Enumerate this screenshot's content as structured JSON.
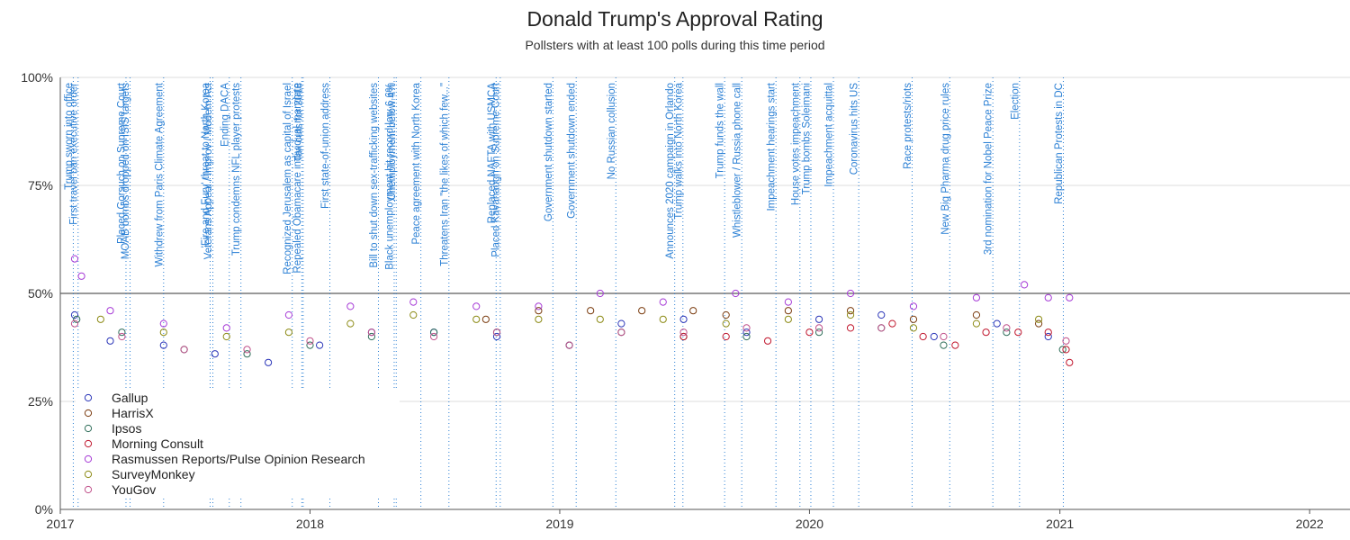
{
  "chart_data": {
    "type": "scatter",
    "title": "Donald Trump's Approval Rating",
    "subtitle": "Pollsters with at least 100 polls during this time period",
    "xlim": [
      "2017-01-01",
      "2022-03-01"
    ],
    "ylim": [
      0,
      100
    ],
    "x_ticks": [
      "2017",
      "2018",
      "2019",
      "2020",
      "2021",
      "2022"
    ],
    "y_ticks": [
      "0%",
      "25%",
      "50%",
      "75%",
      "100%"
    ],
    "reference_line": 50,
    "grid": "horizontal",
    "legend_position": "bottom-left",
    "colors": {
      "Gallup": "#2a35b8",
      "HarrisX": "#7a3b0e",
      "Ipsos": "#2f6e5a",
      "Morning Consult": "#c0152c",
      "Rasmussen Reports/Pulse Opinion Research": "#a63ad6",
      "SurveyMonkey": "#8c8a14",
      "YouGov": "#c0508a",
      "event_line": "#2a7fd4"
    },
    "events": [
      {
        "date": "2017-01-20",
        "label": "Trump sworn into office"
      },
      {
        "date": "2017-01-27",
        "label": "First travel ban executive order"
      },
      {
        "date": "2017-04-07",
        "label": "Placed Gorsuch on Supreme Court"
      },
      {
        "date": "2017-04-13",
        "label": "MOAB bombs dropped on ISIS targets"
      },
      {
        "date": "2017-06-01",
        "label": "Withdrew from Paris Climate Agreement"
      },
      {
        "date": "2017-08-08",
        "label": "'Fire and Fury' threat to North Korea"
      },
      {
        "date": "2017-08-12",
        "label": "Veterans Appeal / Improv / Modern Act"
      },
      {
        "date": "2017-09-05",
        "label": "Ending DACA"
      },
      {
        "date": "2017-09-22",
        "label": "Trump condemns NFL player protests"
      },
      {
        "date": "2017-12-06",
        "label": "Recognized Jerusalem as capital of Israel"
      },
      {
        "date": "2017-12-20",
        "label": "Repealed Obamacare individual mandate"
      },
      {
        "date": "2017-12-22",
        "label": "Tax cuts for 2018"
      },
      {
        "date": "2018-01-30",
        "label": "First state-of-union address"
      },
      {
        "date": "2018-04-11",
        "label": "Bill to shut down sex-trafficking websites"
      },
      {
        "date": "2018-05-04",
        "label": "Black unemployment hit record low 6.6%"
      },
      {
        "date": "2018-05-07",
        "label": "Unemployment below 4%"
      },
      {
        "date": "2018-06-12",
        "label": "Peace agreement with North Korea"
      },
      {
        "date": "2018-07-23",
        "label": "Threatens Iran \"the likes of which few...\""
      },
      {
        "date": "2018-09-30",
        "label": "Replaced NAFTA with USMCA"
      },
      {
        "date": "2018-10-06",
        "label": "Placed Kavanaugh on Supreme Court"
      },
      {
        "date": "2018-12-22",
        "label": "Government shutdown started"
      },
      {
        "date": "2019-01-25",
        "label": "Government shutdown ended"
      },
      {
        "date": "2019-03-24",
        "label": "No Russian collusion"
      },
      {
        "date": "2019-06-18",
        "label": "Announces 2020 campaign in Orlando"
      },
      {
        "date": "2019-06-30",
        "label": "Trump walks into North Korea"
      },
      {
        "date": "2019-08-30",
        "label": "Trump funds the wall"
      },
      {
        "date": "2019-09-24",
        "label": "Whistleblower / Russia phone call"
      },
      {
        "date": "2019-11-13",
        "label": "Impeachment hearings start"
      },
      {
        "date": "2019-12-18",
        "label": "House votes impeachment"
      },
      {
        "date": "2020-01-03",
        "label": "Trump bombs Soleimani"
      },
      {
        "date": "2020-02-05",
        "label": "Impeachment acquittal"
      },
      {
        "date": "2020-03-13",
        "label": "Coronavirus hits US"
      },
      {
        "date": "2020-05-30",
        "label": "Race protests/riots"
      },
      {
        "date": "2020-07-24",
        "label": "New Big Pharma drug price rules"
      },
      {
        "date": "2020-09-25",
        "label": "3rd nomination for Nobel Peace Prize"
      },
      {
        "date": "2020-11-03",
        "label": "Election"
      },
      {
        "date": "2021-01-06",
        "label": "Republican Protests in DC"
      }
    ],
    "series": [
      {
        "name": "Gallup",
        "x": [
          "2017-01-22",
          "2017-03-15",
          "2017-06-01",
          "2017-08-15",
          "2017-11-01",
          "2018-01-15",
          "2018-04-01",
          "2018-07-01",
          "2018-10-01",
          "2019-01-15",
          "2019-04-01",
          "2019-07-01",
          "2019-10-01",
          "2020-01-15",
          "2020-04-15",
          "2020-07-01",
          "2020-10-01",
          "2020-12-15"
        ],
        "y": [
          45,
          39,
          38,
          36,
          34,
          38,
          41,
          41,
          40,
          38,
          43,
          44,
          41,
          44,
          45,
          40,
          43,
          40
        ]
      },
      {
        "name": "HarrisX",
        "x": [
          "2018-09-15",
          "2018-12-01",
          "2019-02-15",
          "2019-05-01",
          "2019-07-15",
          "2019-09-01",
          "2019-12-01",
          "2020-03-01",
          "2020-06-01",
          "2020-09-01",
          "2020-12-01"
        ],
        "y": [
          44,
          46,
          46,
          46,
          46,
          45,
          46,
          46,
          44,
          45,
          43
        ]
      },
      {
        "name": "Ipsos",
        "x": [
          "2017-01-25",
          "2017-04-01",
          "2017-07-01",
          "2017-10-01",
          "2018-01-01",
          "2018-04-01",
          "2018-07-01",
          "2018-10-01",
          "2019-01-15",
          "2019-04-01",
          "2019-07-01",
          "2019-10-01",
          "2020-01-15",
          "2020-04-15",
          "2020-07-15",
          "2020-10-15",
          "2021-01-05"
        ],
        "y": [
          44,
          41,
          37,
          36,
          38,
          40,
          41,
          41,
          38,
          41,
          40,
          40,
          41,
          42,
          38,
          41,
          37
        ]
      },
      {
        "name": "Morning Consult",
        "x": [
          "2019-07-01",
          "2019-09-01",
          "2019-11-01",
          "2020-01-01",
          "2020-03-01",
          "2020-05-01",
          "2020-06-15",
          "2020-08-01",
          "2020-09-15",
          "2020-11-01",
          "2020-12-15",
          "2021-01-10",
          "2021-01-15"
        ],
        "y": [
          40,
          40,
          39,
          41,
          42,
          43,
          40,
          38,
          41,
          41,
          41,
          37,
          34
        ]
      },
      {
        "name": "Rasmussen Reports/Pulse Opinion Research",
        "x": [
          "2017-01-22",
          "2017-02-01",
          "2017-03-15",
          "2017-06-01",
          "2017-09-01",
          "2017-12-01",
          "2018-03-01",
          "2018-06-01",
          "2018-09-01",
          "2018-12-01",
          "2019-03-01",
          "2019-06-01",
          "2019-09-15",
          "2019-12-01",
          "2020-03-01",
          "2020-06-01",
          "2020-09-01",
          "2020-11-10",
          "2020-12-15",
          "2021-01-15"
        ],
        "y": [
          58,
          54,
          46,
          43,
          42,
          45,
          47,
          48,
          47,
          47,
          50,
          48,
          50,
          48,
          50,
          47,
          49,
          52,
          49,
          49
        ]
      },
      {
        "name": "SurveyMonkey",
        "x": [
          "2017-03-01",
          "2017-06-01",
          "2017-09-01",
          "2017-12-01",
          "2018-03-01",
          "2018-06-01",
          "2018-09-01",
          "2018-12-01",
          "2019-03-01",
          "2019-06-01",
          "2019-09-01",
          "2019-12-01",
          "2020-03-01",
          "2020-06-01",
          "2020-09-01",
          "2020-12-01"
        ],
        "y": [
          44,
          41,
          40,
          41,
          43,
          45,
          44,
          44,
          44,
          44,
          43,
          44,
          45,
          42,
          43,
          44
        ]
      },
      {
        "name": "YouGov",
        "x": [
          "2017-01-22",
          "2017-04-01",
          "2017-07-01",
          "2017-10-01",
          "2018-01-01",
          "2018-04-01",
          "2018-07-01",
          "2018-10-01",
          "2019-01-15",
          "2019-04-01",
          "2019-07-01",
          "2019-10-01",
          "2020-01-15",
          "2020-04-15",
          "2020-07-15",
          "2020-10-15",
          "2021-01-10"
        ],
        "y": [
          43,
          40,
          37,
          37,
          39,
          41,
          40,
          41,
          38,
          41,
          41,
          42,
          42,
          42,
          40,
          42,
          39
        ]
      }
    ]
  }
}
